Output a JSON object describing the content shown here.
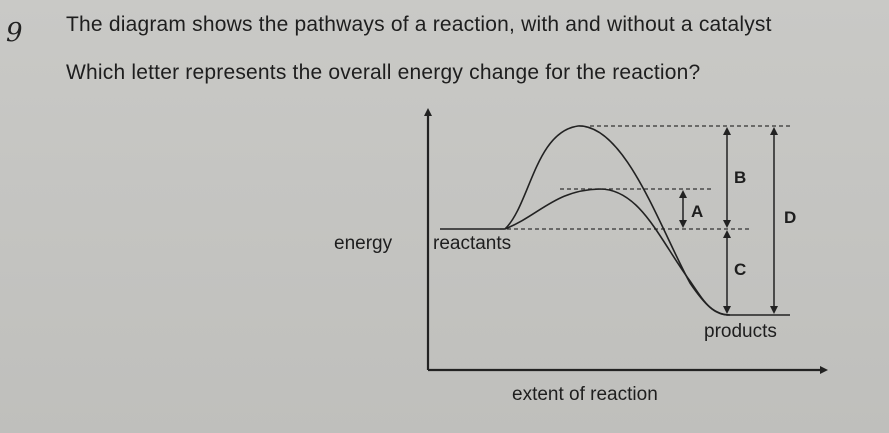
{
  "question": {
    "number": "9",
    "line1": "The diagram shows the pathways of a reaction, with and without a catalyst",
    "line2": "Which letter represents the overall energy change for the reaction?"
  },
  "diagram": {
    "y_axis_label": "energy",
    "x_axis_label": "extent of reaction",
    "reactants_label": "reactants",
    "products_label": "products",
    "letters": {
      "a": "A",
      "b": "B",
      "c": "C",
      "d": "D"
    }
  }
}
